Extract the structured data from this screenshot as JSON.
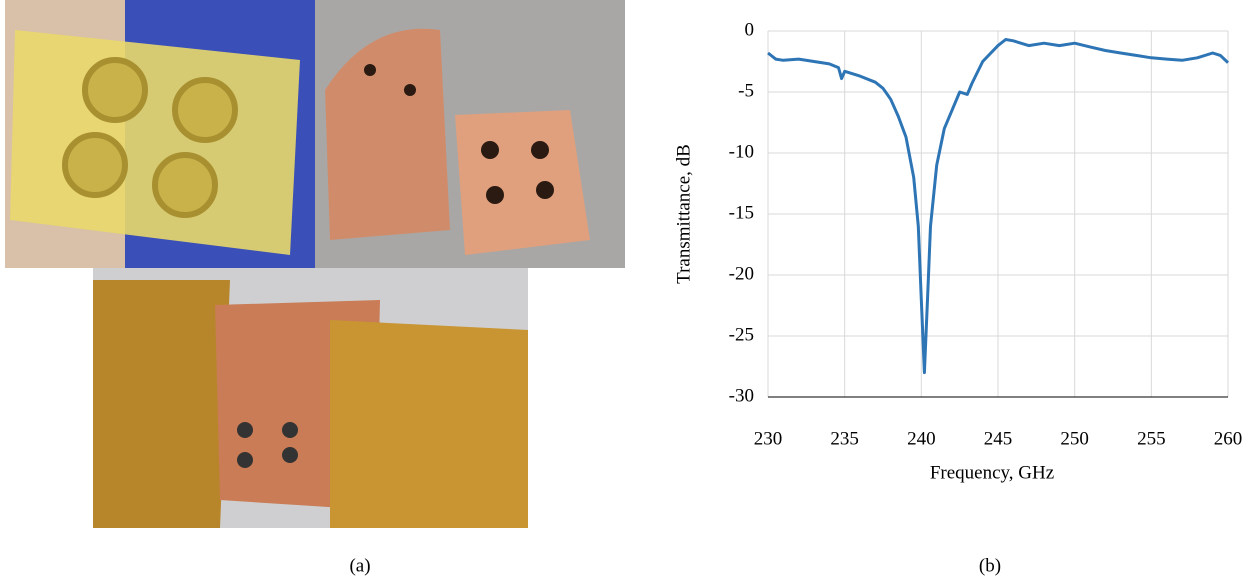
{
  "panel_labels": [
    "(a)",
    "(b)"
  ],
  "chart_data": {
    "type": "line",
    "x_label": "Frequency, GHz",
    "y_label": "Transmittance, dB",
    "color": "#2e75b6",
    "x": [
      230,
      230.5,
      231,
      232,
      233,
      234,
      234.6,
      234.8,
      235,
      236,
      237,
      237.5,
      238,
      238.5,
      239,
      239.5,
      239.8,
      240,
      240.2,
      240.4,
      240.6,
      241,
      241.5,
      242,
      242.5,
      243,
      243.3,
      244,
      245,
      245.5,
      246,
      247,
      248,
      249,
      250,
      251,
      252,
      253,
      254,
      255,
      256,
      257,
      258,
      259,
      259.5,
      260
    ],
    "values": [
      -1.8,
      -2.3,
      -2.4,
      -2.3,
      -2.5,
      -2.7,
      -3.0,
      -3.9,
      -3.3,
      -3.7,
      -4.2,
      -4.7,
      -5.6,
      -7,
      -8.7,
      -12,
      -16,
      -22,
      -28,
      -22,
      -16,
      -11,
      -8,
      -6.5,
      -5,
      -5.2,
      -4.3,
      -2.5,
      -1.2,
      -0.7,
      -0.8,
      -1.2,
      -1.0,
      -1.2,
      -1.0,
      -1.3,
      -1.6,
      -1.8,
      -2.0,
      -2.2,
      -2.3,
      -2.4,
      -2.2,
      -1.8,
      -2.0,
      -2.6
    ],
    "xlim": [
      230,
      260
    ],
    "xticks": [
      230,
      235,
      240,
      245,
      250,
      255,
      260
    ],
    "ylim": [
      -30,
      0
    ],
    "yticks": [
      -30,
      -25,
      -20,
      -15,
      -10,
      -5,
      0
    ],
    "grid": true
  }
}
